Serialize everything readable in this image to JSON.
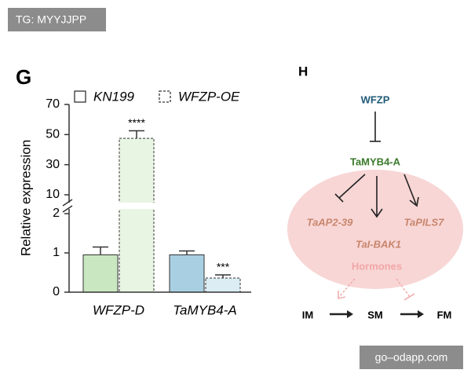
{
  "chart_data": {
    "type": "bar",
    "panel": "G",
    "y_label": "Relative expression",
    "categories": [
      "WFZP-D",
      "TaMYB4-A"
    ],
    "series": [
      {
        "name": "KN199",
        "colors": [
          "#c9e8c1",
          "#a9d0e2"
        ],
        "values": [
          0.95,
          0.95
        ],
        "errors": [
          0.2,
          0.1
        ]
      },
      {
        "name": "WFZP-OE",
        "colors": [
          "#e8f5e2",
          "#dcedf4"
        ],
        "values": [
          47.5,
          0.36
        ],
        "errors": [
          5,
          0.08
        ],
        "dashed": true
      }
    ],
    "significance": [
      "****",
      "***"
    ],
    "ylim": [
      0,
      70
    ],
    "y_break": [
      2,
      10
    ],
    "yticks": [
      0,
      1,
      2,
      10,
      30,
      50,
      70
    ]
  },
  "diagram": {
    "panel": "H",
    "nodes": [
      "WFZP",
      "TaMYB4-A",
      "TaAP2-39",
      "TaI-BAK1",
      "TaPILS7",
      "Hormones",
      "IM",
      "SM",
      "FM"
    ]
  },
  "watermarks": [
    "TG: MYYJJPP",
    "go–odapp.com"
  ]
}
